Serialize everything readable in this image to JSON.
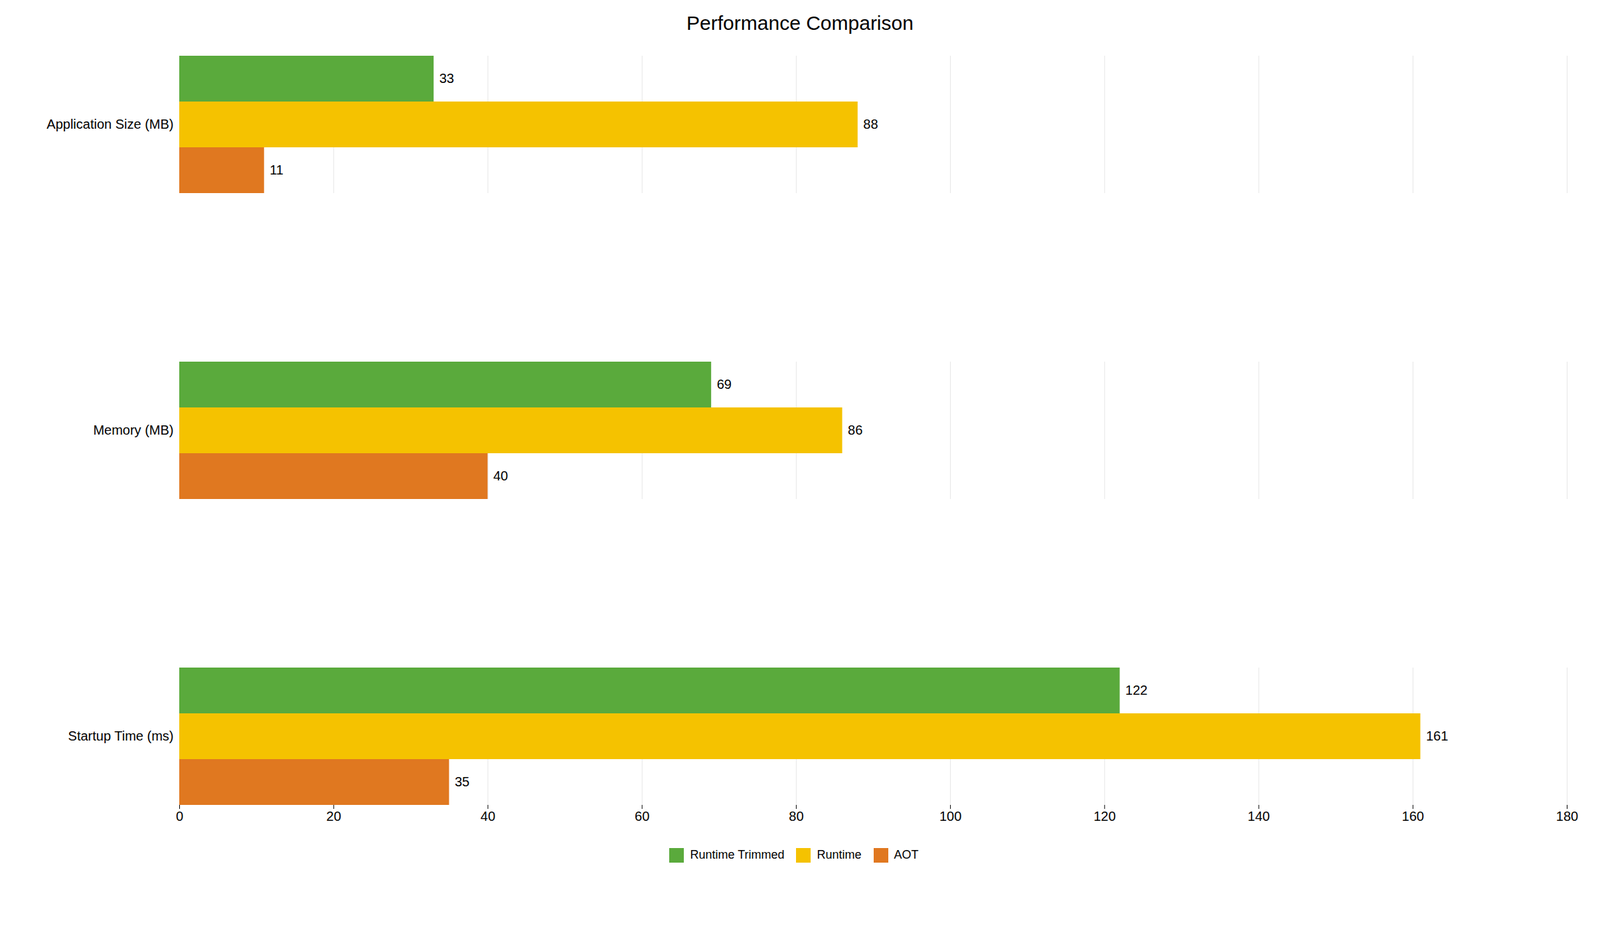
{
  "chart_data": {
    "type": "bar",
    "orientation": "horizontal",
    "title": "Performance Comparison",
    "categories": [
      "Application Size (MB)",
      "Memory (MB)",
      "Startup Time (ms)"
    ],
    "series": [
      {
        "name": "Runtime Trimmed",
        "color": "#5aaa3c",
        "values": [
          33,
          69,
          122
        ]
      },
      {
        "name": "Runtime",
        "color": "#f5c200",
        "values": [
          88,
          86,
          161
        ]
      },
      {
        "name": "AOT",
        "color": "#e07820",
        "values": [
          11,
          40,
          35
        ]
      }
    ],
    "xlim": [
      0,
      180
    ],
    "xticks": [
      0,
      20,
      40,
      60,
      80,
      100,
      120,
      140,
      160,
      180
    ],
    "grid": true,
    "data_labels": true,
    "legend": "bottom"
  }
}
